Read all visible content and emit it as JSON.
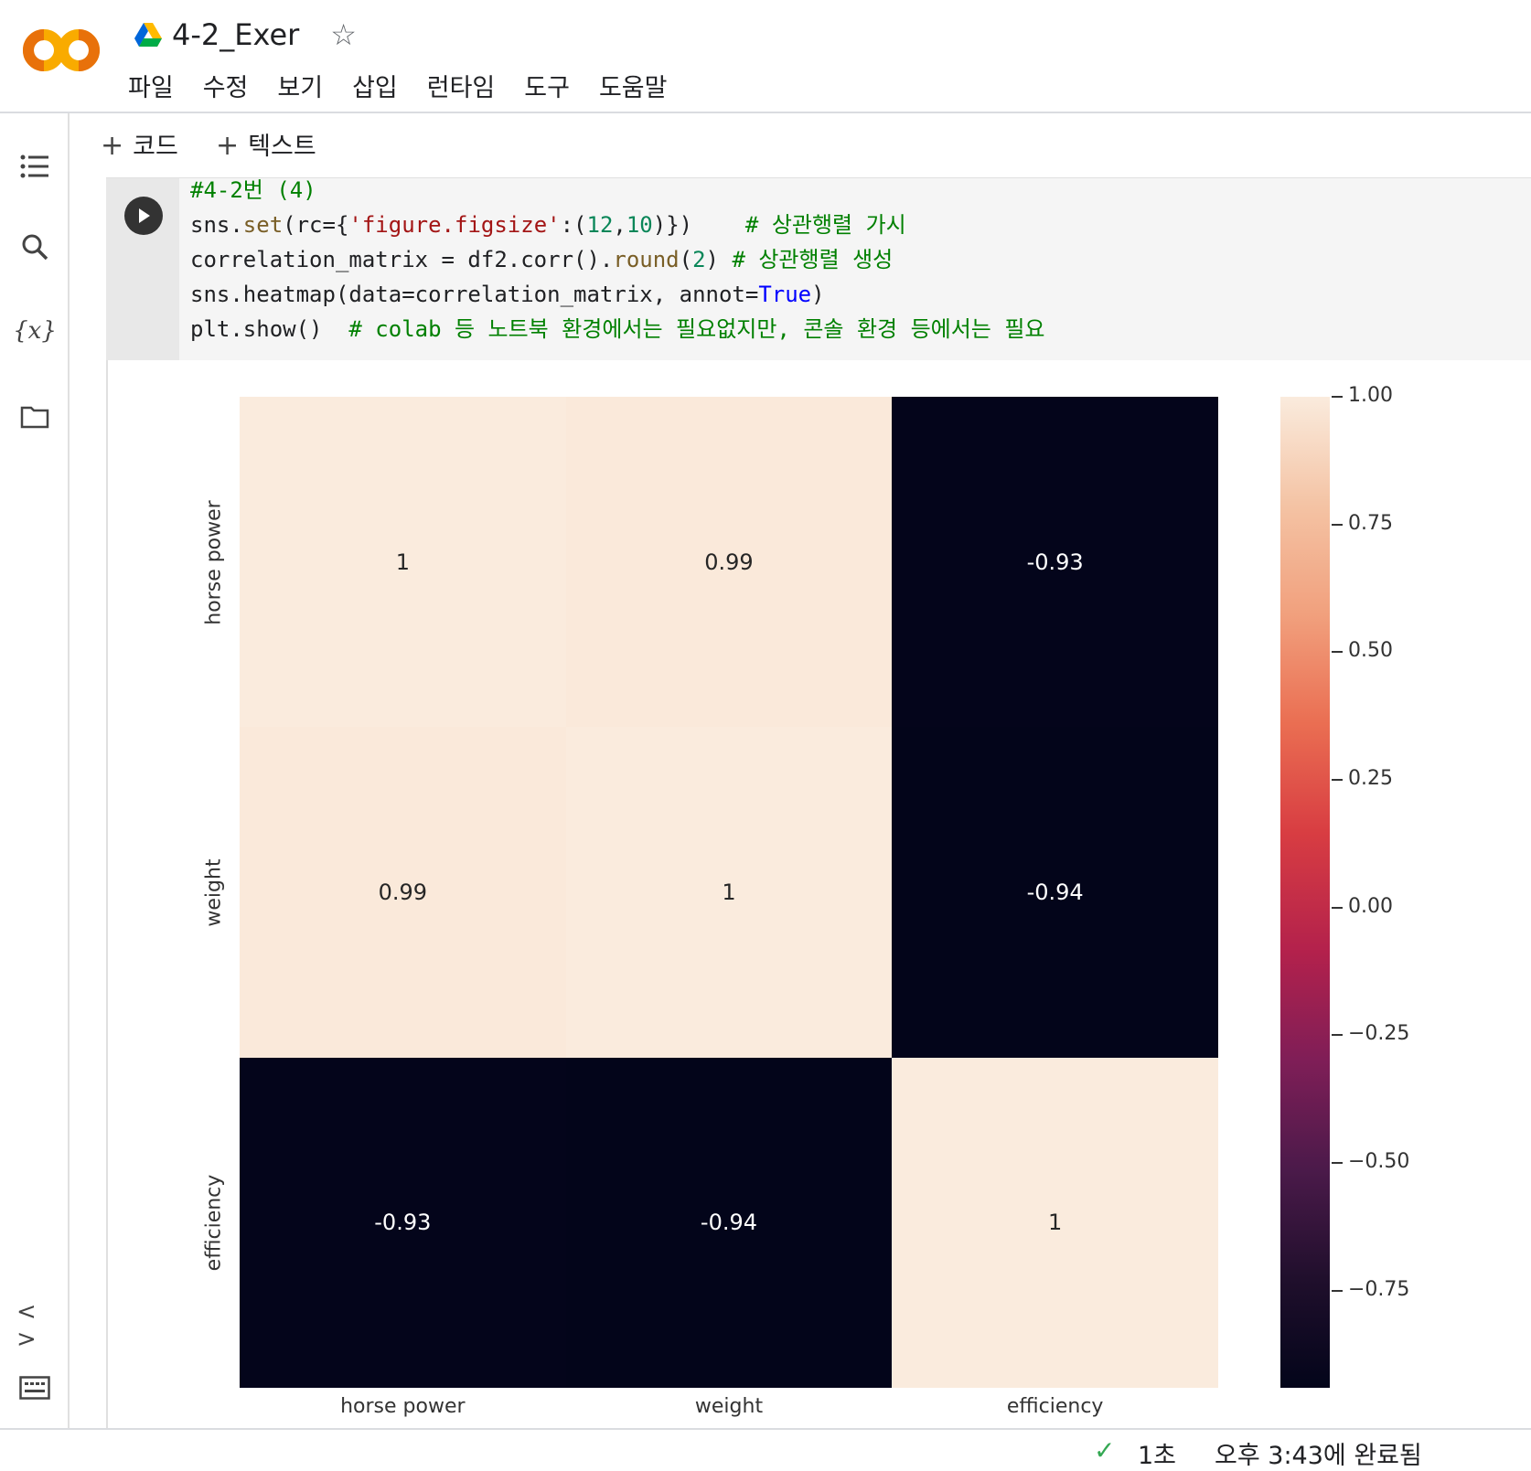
{
  "app": {
    "title": "4-2_Exer",
    "logo_text": "CO",
    "menu": [
      "파일",
      "수정",
      "보기",
      "삽입",
      "런타임",
      "도구",
      "도움말"
    ]
  },
  "toolbar": {
    "code_label": "코드",
    "text_label": "텍스트",
    "plus": "+"
  },
  "sidebar_icons": [
    "table-of-contents-icon",
    "search-icon",
    "variables-icon",
    "folder-icon",
    "code-snippets-icon",
    "terminal-icon"
  ],
  "cell": {
    "lines": [
      "#4-2번 (4)",
      "sns.set(rc={'figure.figsize':(12,10)})    # 상관행렬 가시",
      "correlation_matrix = df2.corr().round(2) # 상관행렬 생성",
      "sns.heatmap(data=correlation_matrix, annot=True)",
      "plt.show()  # colab 등 노트북 환경에서는 필요없지만, 콘솔 환경 등에서는 필요"
    ]
  },
  "chart_data": {
    "type": "heatmap",
    "x_labels": [
      "horse power",
      "weight",
      "efficiency"
    ],
    "y_labels": [
      "horse power",
      "weight",
      "efficiency"
    ],
    "values": [
      [
        1,
        0.99,
        -0.93
      ],
      [
        0.99,
        1,
        -0.94
      ],
      [
        -0.93,
        -0.94,
        1
      ]
    ],
    "annotations": [
      [
        "1",
        "0.99",
        "-0.93"
      ],
      [
        "0.99",
        "1",
        "-0.94"
      ],
      [
        "-0.93",
        "-0.94",
        "1"
      ]
    ],
    "colorbar": {
      "min": -0.94,
      "max": 1.0,
      "ticks": [
        1.0,
        0.75,
        0.5,
        0.25,
        0.0,
        -0.25,
        -0.5,
        -0.75
      ],
      "tick_labels": [
        "1.00",
        "0.75",
        "0.50",
        "0.25",
        "0.00",
        "−0.25",
        "−0.50",
        "−0.75"
      ]
    },
    "colormap": "rocket",
    "colors": {
      "high": "#faebdd",
      "low": "#03051a"
    }
  },
  "status": {
    "check": "✓",
    "duration": "1초",
    "completed": "오후 3:43에 완료됨"
  }
}
